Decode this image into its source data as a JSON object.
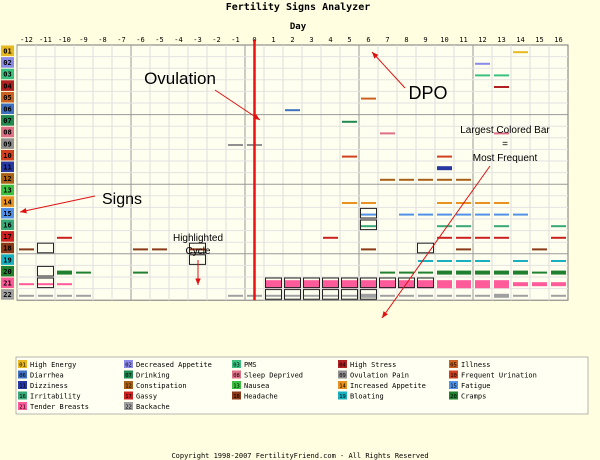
{
  "page": {
    "title": "Fertility Signs Analyzer",
    "copyright": "Copyright 1998-2007 FertilityFriend.com - All Rights Reserved"
  },
  "chart_data": {
    "type": "heatmap",
    "title": "Fertility Signs Analyzer",
    "xlabel": "Day",
    "x": [
      -12,
      -11,
      -10,
      -9,
      -8,
      -7,
      -6,
      -5,
      -4,
      -3,
      -2,
      -1,
      0,
      1,
      2,
      3,
      4,
      5,
      6,
      7,
      8,
      9,
      10,
      11,
      12,
      13,
      14,
      15,
      16
    ],
    "rows": [
      "01",
      "02",
      "03",
      "04",
      "05",
      "06",
      "07",
      "08",
      "09",
      "10",
      "11",
      "12",
      "13",
      "14",
      "15",
      "16",
      "17",
      "18",
      "19",
      "20",
      "21",
      "22"
    ],
    "row_colors": [
      "#e8b820",
      "#8a8ae8",
      "#3cc080",
      "#b02020",
      "#cc6020",
      "#4070c0",
      "#208850",
      "#e07088",
      "#909090",
      "#d04020",
      "#2838a0",
      "#a86018",
      "#3cc040",
      "#e89020",
      "#5090e8",
      "#38a878",
      "#cc2020",
      "#8a3a18",
      "#18b0c0",
      "#208030",
      "#ff5a9a",
      "#a0a0a0"
    ],
    "sign_legend": [
      {
        "code": "01",
        "name": "High Energy",
        "color": "#e8b820"
      },
      {
        "code": "02",
        "name": "Decreased Appetite",
        "color": "#8a8ae8"
      },
      {
        "code": "03",
        "name": "PMS",
        "color": "#3cc080"
      },
      {
        "code": "04",
        "name": "High Stress",
        "color": "#b02020"
      },
      {
        "code": "05",
        "name": "Illness",
        "color": "#cc6020"
      },
      {
        "code": "06",
        "name": "Diarrhea",
        "color": "#4070c0"
      },
      {
        "code": "07",
        "name": "Drinking",
        "color": "#208850"
      },
      {
        "code": "08",
        "name": "Sleep Deprived",
        "color": "#e07088"
      },
      {
        "code": "09",
        "name": "Ovulation Pain",
        "color": "#909090"
      },
      {
        "code": "10",
        "name": "Frequent Urination",
        "color": "#d04020"
      },
      {
        "code": "11",
        "name": "Dizziness",
        "color": "#2838a0"
      },
      {
        "code": "12",
        "name": "Constipation",
        "color": "#a86018"
      },
      {
        "code": "13",
        "name": "Nausea",
        "color": "#3cc040"
      },
      {
        "code": "14",
        "name": "Increased Appetite",
        "color": "#e89020"
      },
      {
        "code": "15",
        "name": "Fatigue",
        "color": "#5090e8"
      },
      {
        "code": "16",
        "name": "Irritability",
        "color": "#38a878"
      },
      {
        "code": "17",
        "name": "Gassy",
        "color": "#cc2020"
      },
      {
        "code": "18",
        "name": "Headache",
        "color": "#8a3a18"
      },
      {
        "code": "19",
        "name": "Bloating",
        "color": "#18b0c0"
      },
      {
        "code": "20",
        "name": "Cramps",
        "color": "#208030"
      },
      {
        "code": "21",
        "name": "Tender Breasts",
        "color": "#ff5a9a"
      },
      {
        "code": "22",
        "name": "Backache",
        "color": "#a0a0a0"
      }
    ],
    "bars": [
      {
        "day": 14,
        "row": "01",
        "level": 1
      },
      {
        "day": 12,
        "row": "02",
        "level": 1
      },
      {
        "day": 12,
        "row": "03",
        "level": 1
      },
      {
        "day": 13,
        "row": "03",
        "level": 1
      },
      {
        "day": 13,
        "row": "04",
        "level": 1
      },
      {
        "day": 6,
        "row": "05",
        "level": 1
      },
      {
        "day": 2,
        "row": "06",
        "level": 1
      },
      {
        "day": 5,
        "row": "07",
        "level": 1
      },
      {
        "day": 7,
        "row": "08",
        "level": 1
      },
      {
        "day": 13,
        "row": "08",
        "level": 1
      },
      {
        "day": -1,
        "row": "09",
        "level": 1
      },
      {
        "day": 0,
        "row": "09",
        "level": 1
      },
      {
        "day": 5,
        "row": "10",
        "level": 1
      },
      {
        "day": 10,
        "row": "10",
        "level": 1
      },
      {
        "day": 10,
        "row": "11",
        "level": 2
      },
      {
        "day": 10,
        "row": "12",
        "level": 1
      },
      {
        "day": 7,
        "row": "12",
        "level": 1
      },
      {
        "day": 8,
        "row": "12",
        "level": 1
      },
      {
        "day": 9,
        "row": "12",
        "level": 1
      },
      {
        "day": 11,
        "row": "12",
        "level": 1
      },
      {
        "day": 5,
        "row": "14",
        "level": 1
      },
      {
        "day": 6,
        "row": "14",
        "level": 1
      },
      {
        "day": 10,
        "row": "14",
        "level": 1
      },
      {
        "day": 11,
        "row": "14",
        "level": 1
      },
      {
        "day": 12,
        "row": "14",
        "level": 1
      },
      {
        "day": 13,
        "row": "14",
        "level": 1
      },
      {
        "day": 6,
        "row": "15",
        "level": 1
      },
      {
        "day": 8,
        "row": "15",
        "level": 1
      },
      {
        "day": 9,
        "row": "15",
        "level": 1
      },
      {
        "day": 10,
        "row": "15",
        "level": 1
      },
      {
        "day": 11,
        "row": "15",
        "level": 1
      },
      {
        "day": 12,
        "row": "15",
        "level": 1
      },
      {
        "day": 13,
        "row": "15",
        "level": 1
      },
      {
        "day": 14,
        "row": "15",
        "level": 1
      },
      {
        "day": 6,
        "row": "16",
        "level": 1
      },
      {
        "day": 10,
        "row": "16",
        "level": 1
      },
      {
        "day": 11,
        "row": "16",
        "level": 1
      },
      {
        "day": 13,
        "row": "16",
        "level": 1
      },
      {
        "day": 16,
        "row": "16",
        "level": 1
      },
      {
        "day": -10,
        "row": "17",
        "level": 1
      },
      {
        "day": 4,
        "row": "17",
        "level": 1
      },
      {
        "day": 10,
        "row": "17",
        "level": 1
      },
      {
        "day": 11,
        "row": "17",
        "level": 1
      },
      {
        "day": 12,
        "row": "17",
        "level": 1
      },
      {
        "day": 13,
        "row": "17",
        "level": 1
      },
      {
        "day": 16,
        "row": "17",
        "level": 1
      },
      {
        "day": -6,
        "row": "18",
        "level": 1
      },
      {
        "day": -5,
        "row": "18",
        "level": 1
      },
      {
        "day": -3,
        "row": "18",
        "level": 1
      },
      {
        "day": -12,
        "row": "18",
        "level": 1
      },
      {
        "day": 6,
        "row": "18",
        "level": 1
      },
      {
        "day": 11,
        "row": "18",
        "level": 1
      },
      {
        "day": 15,
        "row": "18",
        "level": 1
      },
      {
        "day": 9,
        "row": "19",
        "level": 1
      },
      {
        "day": 10,
        "row": "19",
        "level": 1
      },
      {
        "day": 11,
        "row": "19",
        "level": 1
      },
      {
        "day": 12,
        "row": "19",
        "level": 1
      },
      {
        "day": 14,
        "row": "19",
        "level": 1
      },
      {
        "day": 16,
        "row": "19",
        "level": 1
      },
      {
        "day": -10,
        "row": "20",
        "level": 2
      },
      {
        "day": -9,
        "row": "20",
        "level": 1
      },
      {
        "day": -6,
        "row": "20",
        "level": 1
      },
      {
        "day": 7,
        "row": "20",
        "level": 1
      },
      {
        "day": 8,
        "row": "20",
        "level": 1
      },
      {
        "day": 9,
        "row": "20",
        "level": 1
      },
      {
        "day": 10,
        "row": "20",
        "level": 2
      },
      {
        "day": 11,
        "row": "20",
        "level": 2
      },
      {
        "day": 12,
        "row": "20",
        "level": 2
      },
      {
        "day": 13,
        "row": "20",
        "level": 2
      },
      {
        "day": 14,
        "row": "20",
        "level": 2
      },
      {
        "day": 15,
        "row": "20",
        "level": 1
      },
      {
        "day": 16,
        "row": "20",
        "level": 2
      },
      {
        "day": -12,
        "row": "21",
        "level": 1
      },
      {
        "day": -10,
        "row": "21",
        "level": 1
      },
      {
        "day": -11,
        "row": "21",
        "level": 1
      },
      {
        "day": 1,
        "row": "21",
        "level": 3
      },
      {
        "day": 2,
        "row": "21",
        "level": 3
      },
      {
        "day": 3,
        "row": "21",
        "level": 3
      },
      {
        "day": 4,
        "row": "21",
        "level": 3
      },
      {
        "day": 5,
        "row": "21",
        "level": 3
      },
      {
        "day": 6,
        "row": "21",
        "level": 3
      },
      {
        "day": 7,
        "row": "21",
        "level": 3
      },
      {
        "day": 8,
        "row": "21",
        "level": 3
      },
      {
        "day": 9,
        "row": "21",
        "level": 3
      },
      {
        "day": 10,
        "row": "21",
        "level": 3
      },
      {
        "day": 11,
        "row": "21",
        "level": 3
      },
      {
        "day": 12,
        "row": "21",
        "level": 3
      },
      {
        "day": 13,
        "row": "21",
        "level": 3
      },
      {
        "day": 14,
        "row": "21",
        "level": 2
      },
      {
        "day": 15,
        "row": "21",
        "level": 2
      },
      {
        "day": 16,
        "row": "21",
        "level": 2
      },
      {
        "day": -12,
        "row": "22",
        "level": 1
      },
      {
        "day": -11,
        "row": "22",
        "level": 1
      },
      {
        "day": -10,
        "row": "22",
        "level": 1
      },
      {
        "day": -9,
        "row": "22",
        "level": 1
      },
      {
        "day": -1,
        "row": "22",
        "level": 1
      },
      {
        "day": 0,
        "row": "22",
        "level": 1
      },
      {
        "day": 1,
        "row": "22",
        "level": 1
      },
      {
        "day": 2,
        "row": "22",
        "level": 1
      },
      {
        "day": 3,
        "row": "22",
        "level": 1
      },
      {
        "day": 4,
        "row": "22",
        "level": 1
      },
      {
        "day": 5,
        "row": "22",
        "level": 1
      },
      {
        "day": 6,
        "row": "22",
        "level": 2
      },
      {
        "day": 7,
        "row": "22",
        "level": 1
      },
      {
        "day": 8,
        "row": "22",
        "level": 1
      },
      {
        "day": 9,
        "row": "22",
        "level": 1
      },
      {
        "day": 10,
        "row": "22",
        "level": 1
      },
      {
        "day": 11,
        "row": "22",
        "level": 1
      },
      {
        "day": 12,
        "row": "22",
        "level": 1
      },
      {
        "day": 13,
        "row": "22",
        "level": 2
      },
      {
        "day": 14,
        "row": "22",
        "level": 1
      },
      {
        "day": 16,
        "row": "22",
        "level": 1
      }
    ],
    "highlighted_cycle_boxes": [
      {
        "day": -11,
        "rows": [
          "18",
          "20",
          "21"
        ]
      },
      {
        "day": -3,
        "rows": [
          "18",
          "19"
        ]
      },
      {
        "day": 6,
        "rows": [
          "15",
          "16"
        ]
      },
      {
        "day": 9,
        "rows": [
          "18"
        ]
      },
      {
        "day": 1,
        "rows": [
          "21",
          "22"
        ]
      },
      {
        "day": 2,
        "rows": [
          "21",
          "22"
        ]
      },
      {
        "day": 3,
        "rows": [
          "21",
          "22"
        ]
      },
      {
        "day": 4,
        "rows": [
          "21",
          "22"
        ]
      },
      {
        "day": 5,
        "rows": [
          "21",
          "22"
        ]
      },
      {
        "day": 6,
        "rows": [
          "21",
          "22"
        ]
      },
      {
        "day": 7,
        "rows": [
          "21"
        ]
      },
      {
        "day": 8,
        "rows": [
          "21"
        ]
      },
      {
        "day": 9,
        "rows": [
          "21"
        ]
      }
    ],
    "ovulation_day": 0,
    "annotations": [
      {
        "text": "Ovulation",
        "target": "ovulation-line"
      },
      {
        "text": "DPO",
        "target": "day-axis-6"
      },
      {
        "text": "Signs",
        "target": "row-13"
      },
      {
        "text": "Highlighted",
        "target": "day-minus-3"
      },
      {
        "text": "Cycle",
        "target": "day-minus-3"
      },
      {
        "text": "Largest Colored Bar",
        "target": "row-21"
      },
      {
        "text": "=",
        "target": "row-21"
      },
      {
        "text": "Most Frequent",
        "target": "row-21"
      }
    ],
    "grid": true
  }
}
